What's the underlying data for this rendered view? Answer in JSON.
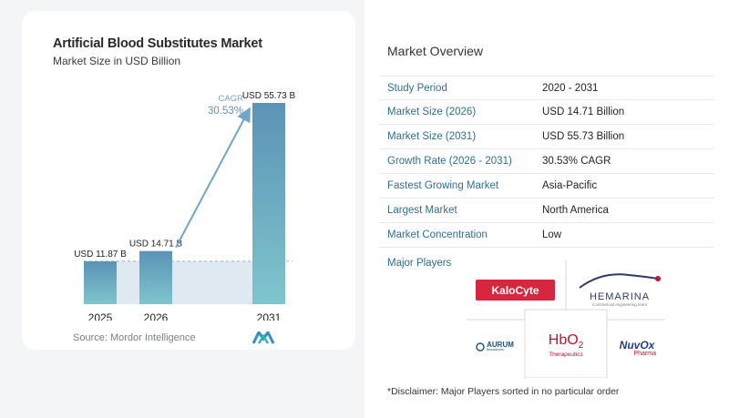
{
  "chart": {
    "title": "Artificial Blood Substitutes Market",
    "subtitle": "Market Size in USD Billion",
    "cagr_label": "CAGR",
    "cagr_value": "30.53%",
    "source": "Source:  Mordor Intelligence"
  },
  "chart_data": {
    "type": "bar",
    "title": "Artificial Blood Substitutes Market",
    "subtitle": "Market Size in USD Billion",
    "categories": [
      "2025",
      "2026",
      "2031"
    ],
    "values": [
      11.87,
      14.71,
      55.73
    ],
    "value_labels": [
      "USD 11.87 B",
      "USD 14.71 B",
      "USD 55.73 B"
    ],
    "annotation": {
      "label": "CAGR",
      "value": "30.53%",
      "from": "2026",
      "to": "2031"
    },
    "ylim": [
      0,
      60
    ],
    "grid": false,
    "colors": {
      "bar_top": "#5b93b5",
      "bar_bottom": "#7ec5cd",
      "arrow": "#6ea7c8",
      "area": "#dfe9f2",
      "dash": "#8fb5cf"
    }
  },
  "overview": {
    "title": "Market Overview",
    "rows": [
      {
        "key": "Study Period",
        "value": "2020 - 2031"
      },
      {
        "key": "Market Size (2026)",
        "value": "USD 14.71 Billion"
      },
      {
        "key": "Market Size (2031)",
        "value": "USD 55.73 Billion"
      },
      {
        "key": "Growth Rate (2026 - 2031)",
        "value": "30.53% CAGR"
      },
      {
        "key": "Fastest Growing Market",
        "value": "Asia-Pacific"
      },
      {
        "key": "Largest Market",
        "value": "North America"
      },
      {
        "key": "Market Concentration",
        "value": "Low"
      }
    ]
  },
  "players": {
    "title": "Major Players",
    "logos": {
      "kalocyte": "KaloCyte",
      "hemarina": "HEMARINA",
      "hemarina_tag": "Commercial engineering team",
      "hbo2": "HbO",
      "hbo2_sub": "2",
      "hbo2_tag": "Therapeutics",
      "aurum": "AURUM",
      "aurum_tag": "Biosciences",
      "nuvox": "NuvOx",
      "nuvox_tag": "Pharma"
    }
  },
  "disclaimer": "*Disclaimer: Major Players sorted in no particular order"
}
